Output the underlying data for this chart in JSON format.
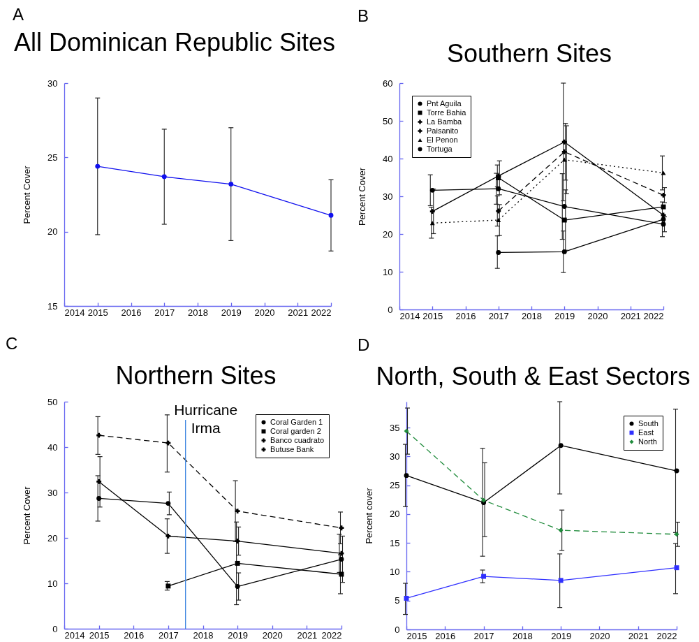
{
  "chart_data": [
    {
      "type": "line",
      "title": "All Dominican Republic Sites",
      "ylabel": "Percent Cover",
      "annotations": [
        "A"
      ],
      "x": [
        2015,
        2017,
        2019,
        2022
      ],
      "series": [
        {
          "color": "#1010ee",
          "values": [
            24.4,
            23.7,
            23.2,
            21.1
          ],
          "errors": [
            [
              19.8,
              29.0
            ],
            [
              20.5,
              26.9
            ],
            [
              19.4,
              27.0
            ],
            [
              18.7,
              23.5
            ]
          ]
        }
      ],
      "xlim": [
        2014,
        2022
      ],
      "xticks": [
        2014,
        2015,
        2016,
        2017,
        2018,
        2019,
        2020,
        2021,
        2022
      ],
      "ylim": [
        15,
        30
      ],
      "yticks": [
        15,
        20,
        25,
        30
      ],
      "marker": "circle"
    },
    {
      "type": "line",
      "title": "Southern Sites",
      "ylabel": "Percent Cover",
      "annotations": [
        "B"
      ],
      "x": [
        2015,
        2017,
        2019,
        2022
      ],
      "series": [
        {
          "name": "Pnt Aguila",
          "color": "#000000",
          "marker": "circle",
          "values": [
            null,
            15.1,
            15.3,
            23.9
          ],
          "errors": [
            null,
            [
              10.9,
              19.5
            ],
            [
              9.8,
              20.8
            ],
            [
              19.3,
              28.5
            ]
          ]
        },
        {
          "name": "Torre Bahia",
          "color": "#000000",
          "marker": "square",
          "values": [
            null,
            34.9,
            23.7,
            27.2
          ],
          "errors": [
            null,
            [
              30.4,
              39.4
            ],
            [
              15.7,
              31.7
            ],
            null
          ]
        },
        {
          "name": "La Bamba",
          "color": "#000000",
          "marker": "cross",
          "line_style": "dashed",
          "values": [
            null,
            26.1,
            41.8,
            30.3
          ],
          "errors": [
            null,
            [
              22.1,
              30.1
            ],
            [
              34.3,
              49.3
            ],
            [
              28.3,
              32.3
            ]
          ]
        },
        {
          "name": "Paisanito",
          "color": "#000000",
          "marker": "cross",
          "values": [
            26.0,
            35.4,
            44.4,
            25.0
          ],
          "errors": [
            [
              20.1,
              31.9
            ],
            [
              32.5,
              38.3
            ],
            [
              28.8,
              60.0
            ],
            null
          ]
        },
        {
          "name": "El Penon",
          "color": "#000000",
          "marker": "triangle",
          "line_style": "dotted",
          "values": [
            22.9,
            23.7,
            39.7,
            36.2
          ],
          "errors": [
            [
              18.9,
              27.1
            ],
            [
              19.6,
              27.8
            ],
            [
              30.7,
              48.7
            ],
            [
              31.7,
              40.7
            ]
          ]
        },
        {
          "name": "Tortuga",
          "color": "#000000",
          "marker": "circle",
          "values": [
            31.6,
            32.0,
            27.3,
            22.6
          ],
          "errors": [
            [
              27.5,
              35.7
            ],
            [
              27.9,
              36.1
            ],
            [
              18.6,
              36.0
            ],
            [
              20.6,
              24.6
            ]
          ]
        }
      ],
      "xlim": [
        2014,
        2022
      ],
      "xticks": [
        2014,
        2015,
        2016,
        2017,
        2018,
        2019,
        2020,
        2021,
        2022
      ],
      "ylim": [
        0,
        60
      ],
      "yticks": [
        0,
        10,
        20,
        30,
        40,
        50,
        60
      ],
      "legend": "top left"
    },
    {
      "type": "line",
      "title": "Northern Sites",
      "ylabel": "Percent Cover",
      "annotations": [
        "C"
      ],
      "x": [
        2015,
        2017,
        2019,
        2022
      ],
      "series": [
        {
          "name": "Coral Garden 1",
          "color": "#000000",
          "marker": "circle",
          "values": [
            28.7,
            27.6,
            9.3,
            15.3
          ],
          "errors": [
            [
              23.7,
              33.7
            ],
            [
              25.1,
              30.1
            ],
            [
              6.3,
              12.3
            ],
            [
              10.2,
              20.4
            ]
          ]
        },
        {
          "name": "Coral garden 2",
          "color": "#000000",
          "marker": "square",
          "values": [
            null,
            9.4,
            14.4,
            12.0
          ],
          "errors": [
            null,
            [
              8.5,
              10.4
            ],
            [
              5.3,
              23.5
            ],
            [
              7.7,
              16.3
            ]
          ]
        },
        {
          "name": "Banco cuadrato",
          "color": "#000000",
          "marker": "cross",
          "line_style": "dashed",
          "values": [
            42.6,
            40.9,
            25.9,
            22.2
          ],
          "errors": [
            [
              38.4,
              46.7
            ],
            [
              34.5,
              47.1
            ],
            [
              19.2,
              32.6
            ],
            [
              18.7,
              25.7
            ]
          ]
        },
        {
          "name": "Butuse Bank",
          "color": "#000000",
          "marker": "cross",
          "values": [
            32.4,
            20.4,
            19.3,
            16.6
          ],
          "errors": [
            [
              26.8,
              37.9
            ],
            [
              16.6,
              24.2
            ],
            [
              16.2,
              22.4
            ],
            [
              12.4,
              20.8
            ]
          ]
        }
      ],
      "xlim": [
        2014,
        2022
      ],
      "xticks": [
        2014,
        2015,
        2016,
        2017,
        2018,
        2019,
        2020,
        2021,
        2022
      ],
      "ylim": [
        0,
        50
      ],
      "yticks": [
        0,
        10,
        20,
        30,
        40,
        50
      ],
      "legend": "top right",
      "ref_lines": [
        {
          "axis": "x",
          "value": 2017.5,
          "label": "Hurricane Irma",
          "color": "#3d85e0"
        }
      ]
    },
    {
      "type": "line",
      "title": "North, South & East Sectors",
      "ylabel": "Percent cover",
      "annotations": [
        "D"
      ],
      "x": [
        2015,
        2017,
        2019,
        2022
      ],
      "series": [
        {
          "name": "South",
          "color": "#000000",
          "marker": "circle",
          "values": [
            26.7,
            22.0,
            31.9,
            27.5
          ],
          "errors": [
            [
              21.3,
              32.1
            ],
            [
              12.7,
              31.4
            ],
            [
              23.5,
              39.5
            ],
            [
              16.8,
              38.2
            ]
          ]
        },
        {
          "name": "East",
          "color": "#3030ff",
          "marker": "square",
          "values": [
            5.4,
            9.2,
            8.5,
            10.7
          ],
          "errors": [
            [
              2.6,
              8.0
            ],
            [
              8.1,
              10.3
            ],
            [
              3.8,
              13.1
            ],
            [
              6.2,
              14.9
            ]
          ]
        },
        {
          "name": "North",
          "color": "#1f8b3b",
          "marker": "diamond",
          "line_style": "dashed",
          "values": [
            34.4,
            22.4,
            17.2,
            16.5
          ],
          "errors": [
            [
              30.4,
              38.4
            ],
            [
              16.1,
              28.9
            ],
            [
              13.7,
              20.7
            ],
            [
              14.4,
              18.6
            ]
          ]
        }
      ],
      "xlim": [
        2015,
        2022
      ],
      "xticks": [
        2015,
        2016,
        2017,
        2018,
        2019,
        2020,
        2021,
        2022
      ],
      "ylim": [
        0,
        39.5
      ],
      "yticks": [
        0,
        5,
        10,
        15,
        20,
        25,
        30,
        35
      ],
      "legend": "top right"
    }
  ]
}
